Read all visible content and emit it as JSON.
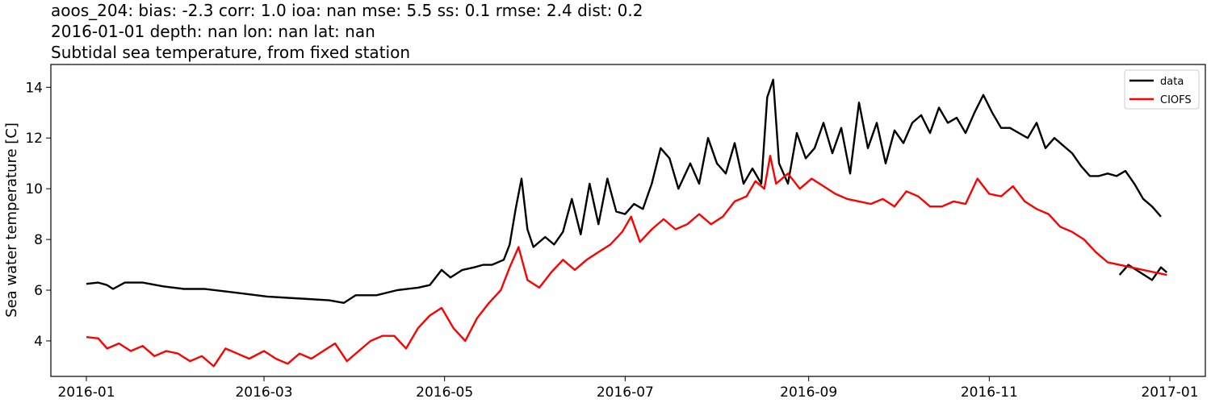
{
  "title_lines": [
    "aoos_204: bias: -2.3  corr: 1.0  ioa: nan  mse: 5.5  ss: 0.1  rmse: 2.4  dist: 0.2",
    "2016-01-01 depth: nan lon: nan lat: nan",
    "Subtidal sea temperature, from fixed station"
  ],
  "chart_data": {
    "type": "line",
    "title": "aoos_204: bias: -2.3  corr: 1.0  ioa: nan  mse: 5.5  ss: 0.1  rmse: 2.4  dist: 0.2 / 2016-01-01 depth: nan lon: nan lat: nan / Subtidal sea temperature, from fixed station",
    "xlabel": "",
    "ylabel": "Sea water temperature [C]",
    "x_tick_labels": [
      "2016-01",
      "2016-03",
      "2016-05",
      "2016-07",
      "2016-09",
      "2016-11",
      "2017-01"
    ],
    "y_ticks": [
      4,
      6,
      8,
      10,
      12,
      14
    ],
    "xlim": [
      "2015-12-20",
      "2017-01-13"
    ],
    "ylim": [
      2.6,
      14.9
    ],
    "grid": false,
    "legend_position": "top-right",
    "series": [
      {
        "name": "data",
        "color": "#000000",
        "segments": [
          [
            [
              "2016-01-01",
              6.25
            ],
            [
              "2016-01-05",
              6.3
            ],
            [
              "2016-01-08",
              6.2
            ],
            [
              "2016-01-10",
              6.05
            ],
            [
              "2016-01-14",
              6.3
            ],
            [
              "2016-01-20",
              6.3
            ],
            [
              "2016-01-27",
              6.15
            ],
            [
              "2016-02-03",
              6.05
            ],
            [
              "2016-02-10",
              6.05
            ],
            [
              "2016-02-17",
              5.95
            ],
            [
              "2016-02-24",
              5.85
            ],
            [
              "2016-03-02",
              5.75
            ],
            [
              "2016-03-09",
              5.7
            ],
            [
              "2016-03-16",
              5.65
            ],
            [
              "2016-03-23",
              5.6
            ],
            [
              "2016-03-28",
              5.5
            ],
            [
              "2016-04-01",
              5.8
            ],
            [
              "2016-04-08",
              5.8
            ],
            [
              "2016-04-15",
              6.0
            ],
            [
              "2016-04-22",
              6.1
            ],
            [
              "2016-04-26",
              6.2
            ],
            [
              "2016-04-30",
              6.8
            ],
            [
              "2016-05-03",
              6.5
            ],
            [
              "2016-05-07",
              6.8
            ],
            [
              "2016-05-11",
              6.9
            ],
            [
              "2016-05-14",
              7.0
            ],
            [
              "2016-05-17",
              7.0
            ],
            [
              "2016-05-21",
              7.2
            ],
            [
              "2016-05-23",
              7.8
            ],
            [
              "2016-05-25",
              9.2
            ],
            [
              "2016-05-27",
              10.4
            ],
            [
              "2016-05-29",
              8.4
            ],
            [
              "2016-05-31",
              7.7
            ],
            [
              "2016-06-04",
              8.1
            ],
            [
              "2016-06-07",
              7.8
            ],
            [
              "2016-06-10",
              8.3
            ],
            [
              "2016-06-13",
              9.6
            ],
            [
              "2016-06-16",
              8.2
            ],
            [
              "2016-06-19",
              10.2
            ],
            [
              "2016-06-22",
              8.6
            ],
            [
              "2016-06-25",
              10.4
            ],
            [
              "2016-06-28",
              9.1
            ],
            [
              "2016-07-01",
              9.0
            ],
            [
              "2016-07-04",
              9.4
            ],
            [
              "2016-07-07",
              9.2
            ],
            [
              "2016-07-10",
              10.2
            ],
            [
              "2016-07-13",
              11.6
            ],
            [
              "2016-07-16",
              11.2
            ],
            [
              "2016-07-19",
              10.0
            ],
            [
              "2016-07-23",
              11.0
            ],
            [
              "2016-07-26",
              10.2
            ],
            [
              "2016-07-29",
              12.0
            ],
            [
              "2016-08-01",
              11.0
            ],
            [
              "2016-08-04",
              10.6
            ],
            [
              "2016-08-07",
              11.8
            ],
            [
              "2016-08-10",
              10.2
            ],
            [
              "2016-08-13",
              10.8
            ],
            [
              "2016-08-16",
              10.2
            ],
            [
              "2016-08-18",
              13.6
            ],
            [
              "2016-08-20",
              14.3
            ],
            [
              "2016-08-22",
              11.0
            ],
            [
              "2016-08-25",
              10.2
            ],
            [
              "2016-08-28",
              12.2
            ],
            [
              "2016-08-31",
              11.2
            ],
            [
              "2016-09-03",
              11.6
            ],
            [
              "2016-09-06",
              12.6
            ],
            [
              "2016-09-09",
              11.4
            ],
            [
              "2016-09-12",
              12.4
            ],
            [
              "2016-09-15",
              10.6
            ],
            [
              "2016-09-18",
              13.4
            ],
            [
              "2016-09-21",
              11.6
            ],
            [
              "2016-09-24",
              12.6
            ],
            [
              "2016-09-27",
              11.0
            ],
            [
              "2016-09-30",
              12.3
            ],
            [
              "2016-10-03",
              11.8
            ],
            [
              "2016-10-06",
              12.6
            ],
            [
              "2016-10-09",
              12.9
            ],
            [
              "2016-10-12",
              12.2
            ],
            [
              "2016-10-15",
              13.2
            ],
            [
              "2016-10-18",
              12.6
            ],
            [
              "2016-10-21",
              12.8
            ],
            [
              "2016-10-24",
              12.2
            ],
            [
              "2016-10-27",
              13.0
            ],
            [
              "2016-10-30",
              13.7
            ],
            [
              "2016-11-02",
              13.0
            ],
            [
              "2016-11-05",
              12.4
            ],
            [
              "2016-11-08",
              12.4
            ],
            [
              "2016-11-11",
              12.2
            ],
            [
              "2016-11-14",
              12.0
            ],
            [
              "2016-11-17",
              12.6
            ],
            [
              "2016-11-20",
              11.6
            ],
            [
              "2016-11-23",
              12.0
            ],
            [
              "2016-11-26",
              11.7
            ],
            [
              "2016-11-29",
              11.4
            ],
            [
              "2016-12-02",
              10.9
            ],
            [
              "2016-12-05",
              10.5
            ],
            [
              "2016-12-08",
              10.5
            ],
            [
              "2016-12-11",
              10.6
            ],
            [
              "2016-12-14",
              10.5
            ],
            [
              "2016-12-17",
              10.7
            ],
            [
              "2016-12-20",
              10.2
            ],
            [
              "2016-12-23",
              9.6
            ],
            [
              "2016-12-26",
              9.3
            ],
            [
              "2016-12-29",
              8.9
            ]
          ],
          [
            [
              "2016-12-15",
              6.6
            ],
            [
              "2016-12-18",
              7.0
            ],
            [
              "2016-12-22",
              6.7
            ],
            [
              "2016-12-26",
              6.4
            ],
            [
              "2016-12-29",
              6.9
            ],
            [
              "2016-12-31",
              6.7
            ]
          ]
        ]
      },
      {
        "name": "CIOFS",
        "color": "#ff0000",
        "segments": [
          [
            [
              "2016-01-01",
              4.15
            ],
            [
              "2016-01-05",
              4.1
            ],
            [
              "2016-01-08",
              3.7
            ],
            [
              "2016-01-12",
              3.9
            ],
            [
              "2016-01-16",
              3.6
            ],
            [
              "2016-01-20",
              3.8
            ],
            [
              "2016-01-24",
              3.4
            ],
            [
              "2016-01-28",
              3.6
            ],
            [
              "2016-02-01",
              3.5
            ],
            [
              "2016-02-05",
              3.2
            ],
            [
              "2016-02-09",
              3.4
            ],
            [
              "2016-02-13",
              3.0
            ],
            [
              "2016-02-17",
              3.7
            ],
            [
              "2016-02-21",
              3.5
            ],
            [
              "2016-02-25",
              3.3
            ],
            [
              "2016-03-01",
              3.6
            ],
            [
              "2016-03-05",
              3.3
            ],
            [
              "2016-03-09",
              3.1
            ],
            [
              "2016-03-13",
              3.5
            ],
            [
              "2016-03-17",
              3.3
            ],
            [
              "2016-03-21",
              3.6
            ],
            [
              "2016-03-25",
              3.9
            ],
            [
              "2016-03-29",
              3.2
            ],
            [
              "2016-04-02",
              3.6
            ],
            [
              "2016-04-06",
              4.0
            ],
            [
              "2016-04-10",
              4.2
            ],
            [
              "2016-04-14",
              4.2
            ],
            [
              "2016-04-18",
              3.7
            ],
            [
              "2016-04-22",
              4.5
            ],
            [
              "2016-04-26",
              5.0
            ],
            [
              "2016-04-30",
              5.3
            ],
            [
              "2016-05-04",
              4.5
            ],
            [
              "2016-05-08",
              4.0
            ],
            [
              "2016-05-12",
              4.9
            ],
            [
              "2016-05-16",
              5.5
            ],
            [
              "2016-05-20",
              6.0
            ],
            [
              "2016-05-23",
              6.9
            ],
            [
              "2016-05-26",
              7.7
            ],
            [
              "2016-05-29",
              6.4
            ],
            [
              "2016-06-02",
              6.1
            ],
            [
              "2016-06-06",
              6.7
            ],
            [
              "2016-06-10",
              7.2
            ],
            [
              "2016-06-14",
              6.8
            ],
            [
              "2016-06-18",
              7.2
            ],
            [
              "2016-06-22",
              7.5
            ],
            [
              "2016-06-26",
              7.8
            ],
            [
              "2016-06-30",
              8.3
            ],
            [
              "2016-07-03",
              8.9
            ],
            [
              "2016-07-06",
              7.9
            ],
            [
              "2016-07-10",
              8.4
            ],
            [
              "2016-07-14",
              8.8
            ],
            [
              "2016-07-18",
              8.4
            ],
            [
              "2016-07-22",
              8.6
            ],
            [
              "2016-07-26",
              9.0
            ],
            [
              "2016-07-30",
              8.6
            ],
            [
              "2016-08-03",
              8.9
            ],
            [
              "2016-08-07",
              9.5
            ],
            [
              "2016-08-11",
              9.7
            ],
            [
              "2016-08-14",
              10.3
            ],
            [
              "2016-08-17",
              10.0
            ],
            [
              "2016-08-19",
              11.3
            ],
            [
              "2016-08-21",
              10.2
            ],
            [
              "2016-08-25",
              10.6
            ],
            [
              "2016-08-29",
              10.0
            ],
            [
              "2016-09-02",
              10.4
            ],
            [
              "2016-09-06",
              10.1
            ],
            [
              "2016-09-10",
              9.8
            ],
            [
              "2016-09-14",
              9.6
            ],
            [
              "2016-09-18",
              9.5
            ],
            [
              "2016-09-22",
              9.4
            ],
            [
              "2016-09-26",
              9.6
            ],
            [
              "2016-09-30",
              9.3
            ],
            [
              "2016-10-04",
              9.9
            ],
            [
              "2016-10-08",
              9.7
            ],
            [
              "2016-10-12",
              9.3
            ],
            [
              "2016-10-16",
              9.3
            ],
            [
              "2016-10-20",
              9.5
            ],
            [
              "2016-10-24",
              9.4
            ],
            [
              "2016-10-28",
              10.4
            ],
            [
              "2016-11-01",
              9.8
            ],
            [
              "2016-11-05",
              9.7
            ],
            [
              "2016-11-09",
              10.1
            ],
            [
              "2016-11-13",
              9.5
            ],
            [
              "2016-11-17",
              9.2
            ],
            [
              "2016-11-21",
              9.0
            ],
            [
              "2016-11-25",
              8.5
            ],
            [
              "2016-11-29",
              8.3
            ],
            [
              "2016-12-03",
              8.0
            ],
            [
              "2016-12-07",
              7.5
            ],
            [
              "2016-12-11",
              7.1
            ],
            [
              "2016-12-15",
              7.0
            ],
            [
              "2016-12-19",
              6.9
            ],
            [
              "2016-12-23",
              6.8
            ],
            [
              "2016-12-27",
              6.7
            ],
            [
              "2016-12-31",
              6.6
            ]
          ]
        ]
      }
    ]
  },
  "legend": [
    {
      "label": "data",
      "color": "#000000"
    },
    {
      "label": "CIOFS",
      "color": "#ff0000"
    }
  ]
}
